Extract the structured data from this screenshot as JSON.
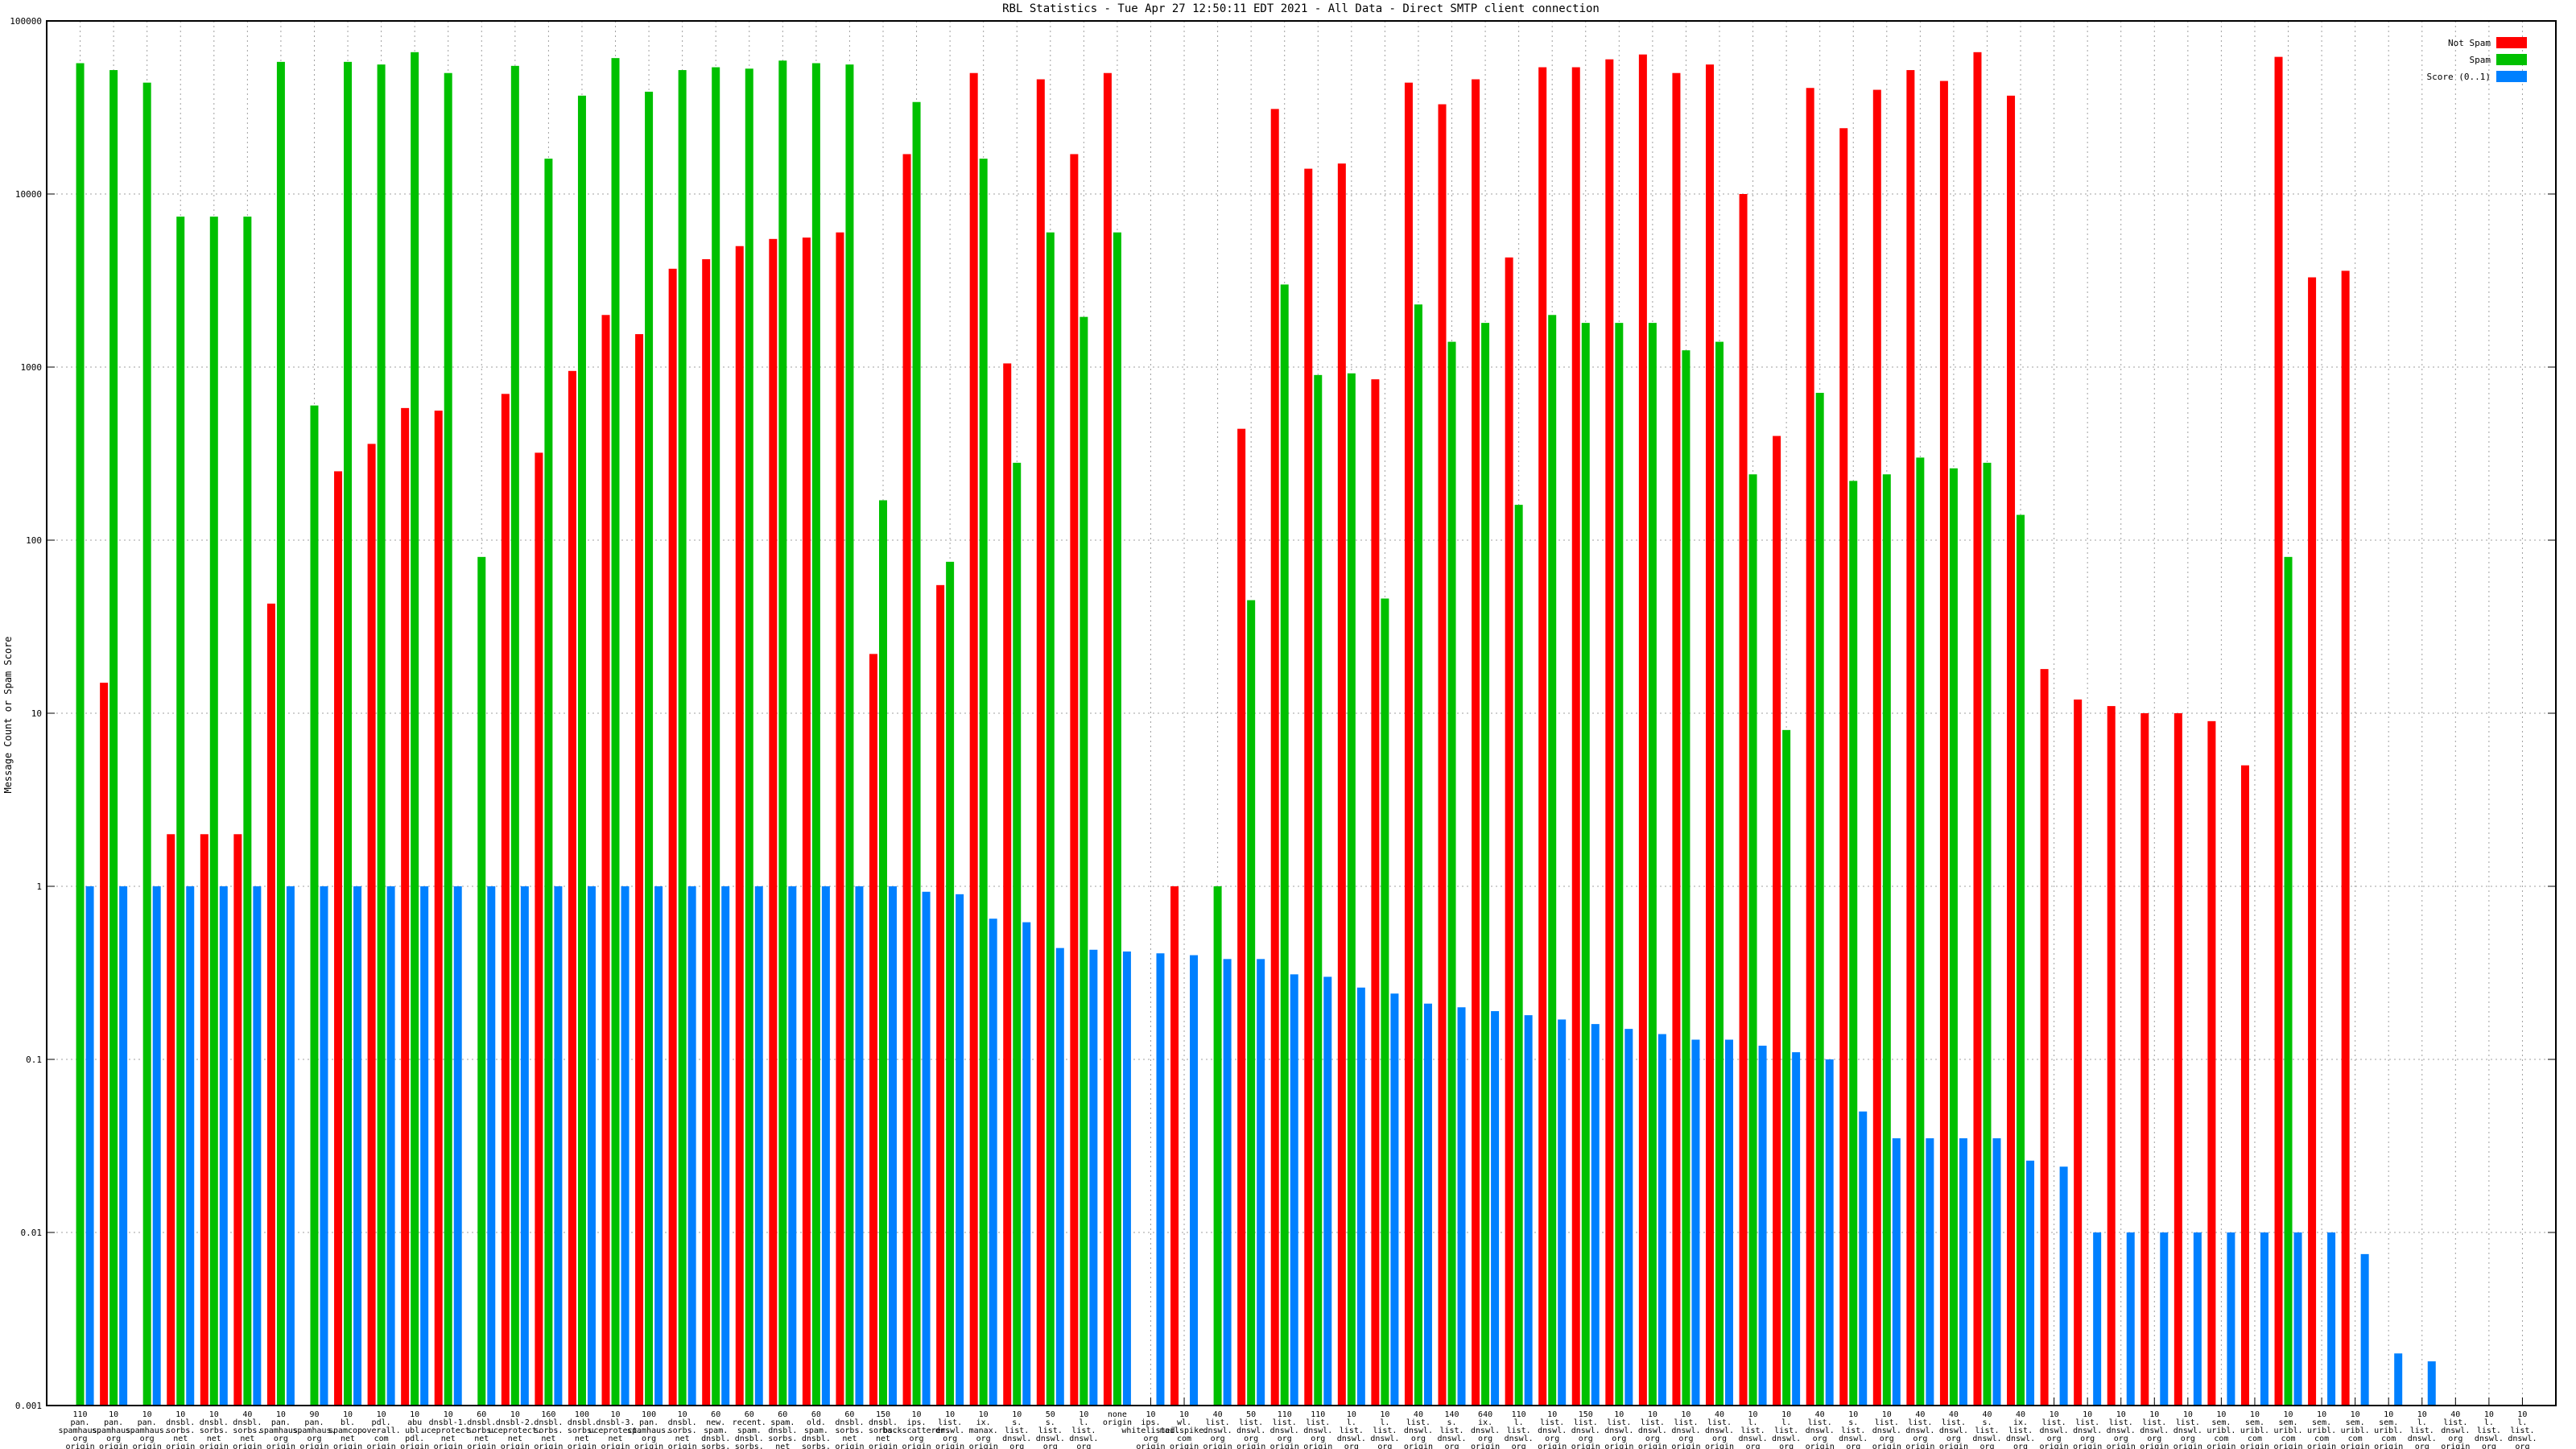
{
  "chart_data": {
    "type": "bar",
    "title": "RBL Statistics - Tue Apr 27 12:50:11 EDT 2021 - All Data - Direct SMTP client connection",
    "xlabel": "",
    "ylabel": "Message Count or Spam Score",
    "yscale": "log",
    "ylim": [
      0.001,
      100000
    ],
    "yticks": [
      0.001,
      0.01,
      0.1,
      1,
      10,
      100,
      1000,
      10000,
      100000
    ],
    "ytick_labels": [
      "0.001",
      "0.01",
      "0.1",
      "1",
      "10",
      "100",
      "1000",
      "10000",
      "100000"
    ],
    "grid": true,
    "legend_position": "top-right",
    "colors": {
      "not_spam": "#ff0000",
      "spam": "#00c000",
      "score": "#0080ff"
    },
    "categories": [
      [
        "110",
        "pan.",
        "spamhaus.",
        "org",
        "origin"
      ],
      [
        "10",
        "pan.",
        "spamhaus.",
        "org",
        "origin"
      ],
      [
        "10",
        "pan.",
        "spamhaus.",
        "org",
        "origin"
      ],
      [
        "10",
        "dnsbl.",
        "sorbs.",
        "net",
        "origin"
      ],
      [
        "10",
        "dnsbl.",
        "sorbs.",
        "net",
        "origin"
      ],
      [
        "40",
        "dnsbl.",
        "sorbs.",
        "net",
        "origin"
      ],
      [
        "10",
        "pan.",
        "spamhaus.",
        "org",
        "origin"
      ],
      [
        "90",
        "pan.",
        "spamhaus.",
        "org",
        "origin"
      ],
      [
        "10",
        "bl.",
        "spamcop.",
        "net",
        "origin"
      ],
      [
        "10",
        "pdl.",
        "overall.",
        "com",
        "origin"
      ],
      [
        "10",
        "abu",
        "ubl.",
        "pdl.",
        "origin"
      ],
      [
        "10",
        "dnsbl-1.",
        "uceprotect.",
        "net",
        "origin"
      ],
      [
        "60",
        "dnsbl.",
        "sorbs.",
        "net",
        "origin"
      ],
      [
        "10",
        "dnsbl-2.",
        "uceprotect.",
        "net",
        "origin"
      ],
      [
        "160",
        "dnsbl.",
        "sorbs.",
        "net",
        "origin"
      ],
      [
        "100",
        "dnsbl.",
        "sorbs.",
        "net",
        "origin"
      ],
      [
        "10",
        "dnsbl-3.",
        "uceprotect.",
        "net",
        "origin"
      ],
      [
        "100",
        "pan.",
        "spamhaus.",
        "org",
        "origin"
      ],
      [
        "10",
        "dnsbl.",
        "sorbs.",
        "net",
        "origin"
      ],
      [
        "60",
        "new.",
        "spam.",
        "dnsbl.",
        "sorbs.",
        "net",
        "origin"
      ],
      [
        "60",
        "recent.",
        "spam.",
        "dnsbl.",
        "sorbs.",
        "net",
        "origin"
      ],
      [
        "60",
        "spam.",
        "dnsbl.",
        "sorbs.",
        "net",
        "origin"
      ],
      [
        "60",
        "old.",
        "spam.",
        "dnsbl.",
        "sorbs.",
        "net",
        "origin"
      ],
      [
        "60",
        "dnsbl.",
        "sorbs.",
        "net",
        "origin"
      ],
      [
        "150",
        "dnsbl.",
        "sorbs.",
        "net",
        "origin"
      ],
      [
        "10",
        "ips.",
        "backscatterer.",
        "org",
        "origin"
      ],
      [
        "10",
        "list.",
        "dnswl.",
        "org",
        "origin"
      ],
      [
        "10",
        "ix.",
        "manax.",
        "org",
        "origin"
      ],
      [
        "10",
        "s.",
        "list.",
        "dnswl.",
        "org",
        "origin"
      ],
      [
        "50",
        "s.",
        "list.",
        "dnswl.",
        "org",
        "origin"
      ],
      [
        "10",
        "l.",
        "list.",
        "dnswl.",
        "org",
        "origin"
      ],
      [
        "none",
        "origin"
      ],
      [
        "10",
        "ips.",
        "whitelisted.",
        "org",
        "origin"
      ],
      [
        "10",
        "wl.",
        "mailspike.",
        "com",
        "origin"
      ],
      [
        "40",
        "list.",
        "dnswl.",
        "org",
        "origin"
      ],
      [
        "50",
        "list.",
        "dnswl.",
        "org",
        "origin"
      ],
      [
        "110",
        "list.",
        "dnswl.",
        "org",
        "origin"
      ],
      [
        "110",
        "list.",
        "dnswl.",
        "org",
        "origin"
      ],
      [
        "10",
        "l.",
        "list.",
        "dnswl.",
        "org",
        "origin"
      ],
      [
        "10",
        "l.",
        "list.",
        "dnswl.",
        "org",
        "origin"
      ],
      [
        "40",
        "list.",
        "dnswl.",
        "org",
        "origin"
      ],
      [
        "140",
        "s.",
        "list.",
        "dnswl.",
        "org",
        "origin"
      ],
      [
        "640",
        "ix.",
        "dnswl.",
        "org",
        "origin"
      ],
      [
        "110",
        "l.",
        "list.",
        "dnswl.",
        "org",
        "origin"
      ],
      [
        "10",
        "list.",
        "dnswl.",
        "org",
        "origin"
      ],
      [
        "150",
        "list.",
        "dnswl.",
        "org",
        "origin"
      ],
      [
        "10",
        "list.",
        "dnswl.",
        "org",
        "origin"
      ],
      [
        "10",
        "list.",
        "dnswl.",
        "org",
        "origin"
      ],
      [
        "10",
        "list.",
        "dnswl.",
        "org",
        "origin"
      ],
      [
        "40",
        "list.",
        "dnswl.",
        "org",
        "origin"
      ],
      [
        "10",
        "l.",
        "list.",
        "dnswl.",
        "org",
        "origin"
      ],
      [
        "10",
        "l.",
        "list.",
        "dnswl.",
        "org",
        "origin"
      ],
      [
        "40",
        "list.",
        "dnswl.",
        "org",
        "origin"
      ],
      [
        "10",
        "s.",
        "list.",
        "dnswl.",
        "org",
        "origin"
      ],
      [
        "10",
        "list.",
        "dnswl.",
        "org",
        "origin"
      ],
      [
        "40",
        "list.",
        "dnswl.",
        "org",
        "origin"
      ],
      [
        "40",
        "list.",
        "dnswl.",
        "org",
        "origin"
      ],
      [
        "40",
        "s.",
        "list.",
        "dnswl.",
        "org",
        "origin"
      ],
      [
        "40",
        "ix.",
        "list.",
        "dnswl.",
        "org",
        "origin"
      ],
      [
        "10",
        "list.",
        "dnswl.",
        "org",
        "origin"
      ],
      [
        "10",
        "list.",
        "dnswl.",
        "org",
        "origin"
      ],
      [
        "10",
        "list.",
        "dnswl.",
        "org",
        "origin"
      ],
      [
        "10",
        "list.",
        "dnswl.",
        "org",
        "origin"
      ],
      [
        "10",
        "list.",
        "dnswl.",
        "org",
        "origin"
      ],
      [
        "10",
        "sem.",
        "uribl.",
        "com",
        "origin"
      ],
      [
        "10",
        "sem.",
        "uribl.",
        "com",
        "origin"
      ],
      [
        "10",
        "sem.",
        "uribl.",
        "com",
        "origin"
      ],
      [
        "10",
        "sem.",
        "uribl.",
        "com",
        "origin"
      ],
      [
        "10",
        "sem.",
        "uribl.",
        "com",
        "origin"
      ],
      [
        "10",
        "sem.",
        "uribl.",
        "com",
        "origin"
      ],
      [
        "10",
        "l.",
        "list.",
        "dnswl.",
        "org",
        "origin"
      ],
      [
        "40",
        "list.",
        "dnswl.",
        "org",
        "origin"
      ],
      [
        "10",
        "l.",
        "list.",
        "dnswl.",
        "org",
        "origin"
      ],
      [
        "10",
        "l.",
        "list.",
        "dnswl.",
        "org",
        "origin"
      ]
    ],
    "series": [
      {
        "name": "Not Spam",
        "values": [
          null,
          15,
          null,
          2,
          2,
          2,
          43,
          null,
          250,
          360,
          580,
          560,
          null,
          700,
          320,
          950,
          2000,
          1550,
          3700,
          4200,
          5000,
          5500,
          5600,
          6000,
          22,
          17000,
          55,
          50000,
          1050,
          46000,
          17000,
          50000,
          null,
          1,
          null,
          440,
          31000,
          14000,
          15000,
          850,
          44000,
          33000,
          46000,
          4300,
          54000,
          54000,
          60000,
          64000,
          50000,
          56000,
          10000,
          400,
          41000,
          24000,
          40000,
          52000,
          45000,
          66000,
          37000,
          18,
          12,
          11,
          10,
          10,
          9,
          5,
          62000,
          3300,
          3600,
          null,
          null,
          null,
          null,
          null
        ]
      },
      {
        "name": "Spam",
        "values": [
          57000,
          52000,
          44000,
          7400,
          7400,
          7400,
          58000,
          600,
          58000,
          56000,
          66000,
          50000,
          80,
          55000,
          16000,
          37000,
          61000,
          39000,
          52000,
          54000,
          53000,
          59000,
          57000,
          56000,
          170,
          34000,
          75,
          16000,
          280,
          6000,
          1950,
          6000,
          null,
          null,
          1,
          45,
          3000,
          900,
          920,
          46,
          2300,
          1400,
          1800,
          160,
          2000,
          1800,
          1800,
          1800,
          1250,
          1400,
          240,
          8,
          710,
          220,
          240,
          300,
          260,
          280,
          140,
          null,
          null,
          null,
          null,
          null,
          null,
          null,
          80,
          null,
          null,
          null,
          null,
          null,
          null,
          null
        ]
      },
      {
        "name": "Score (0..1)",
        "values": [
          1,
          1,
          1,
          1,
          1,
          1,
          1,
          1,
          1,
          1,
          1,
          1,
          1,
          1,
          1,
          1,
          1,
          1,
          1,
          1,
          1,
          1,
          1,
          1,
          1,
          0.93,
          0.9,
          0.65,
          0.62,
          0.44,
          0.43,
          0.42,
          0.41,
          0.4,
          0.38,
          0.38,
          0.31,
          0.3,
          0.26,
          0.24,
          0.21,
          0.2,
          0.19,
          0.18,
          0.17,
          0.16,
          0.15,
          0.14,
          0.13,
          0.13,
          0.12,
          0.11,
          0.1,
          0.05,
          0.035,
          0.035,
          0.035,
          0.035,
          0.026,
          0.024,
          0.01,
          0.01,
          0.01,
          0.01,
          0.01,
          0.01,
          0.01,
          0.01,
          0.0075,
          0.002,
          0.0018,
          null,
          null,
          null
        ]
      }
    ]
  }
}
